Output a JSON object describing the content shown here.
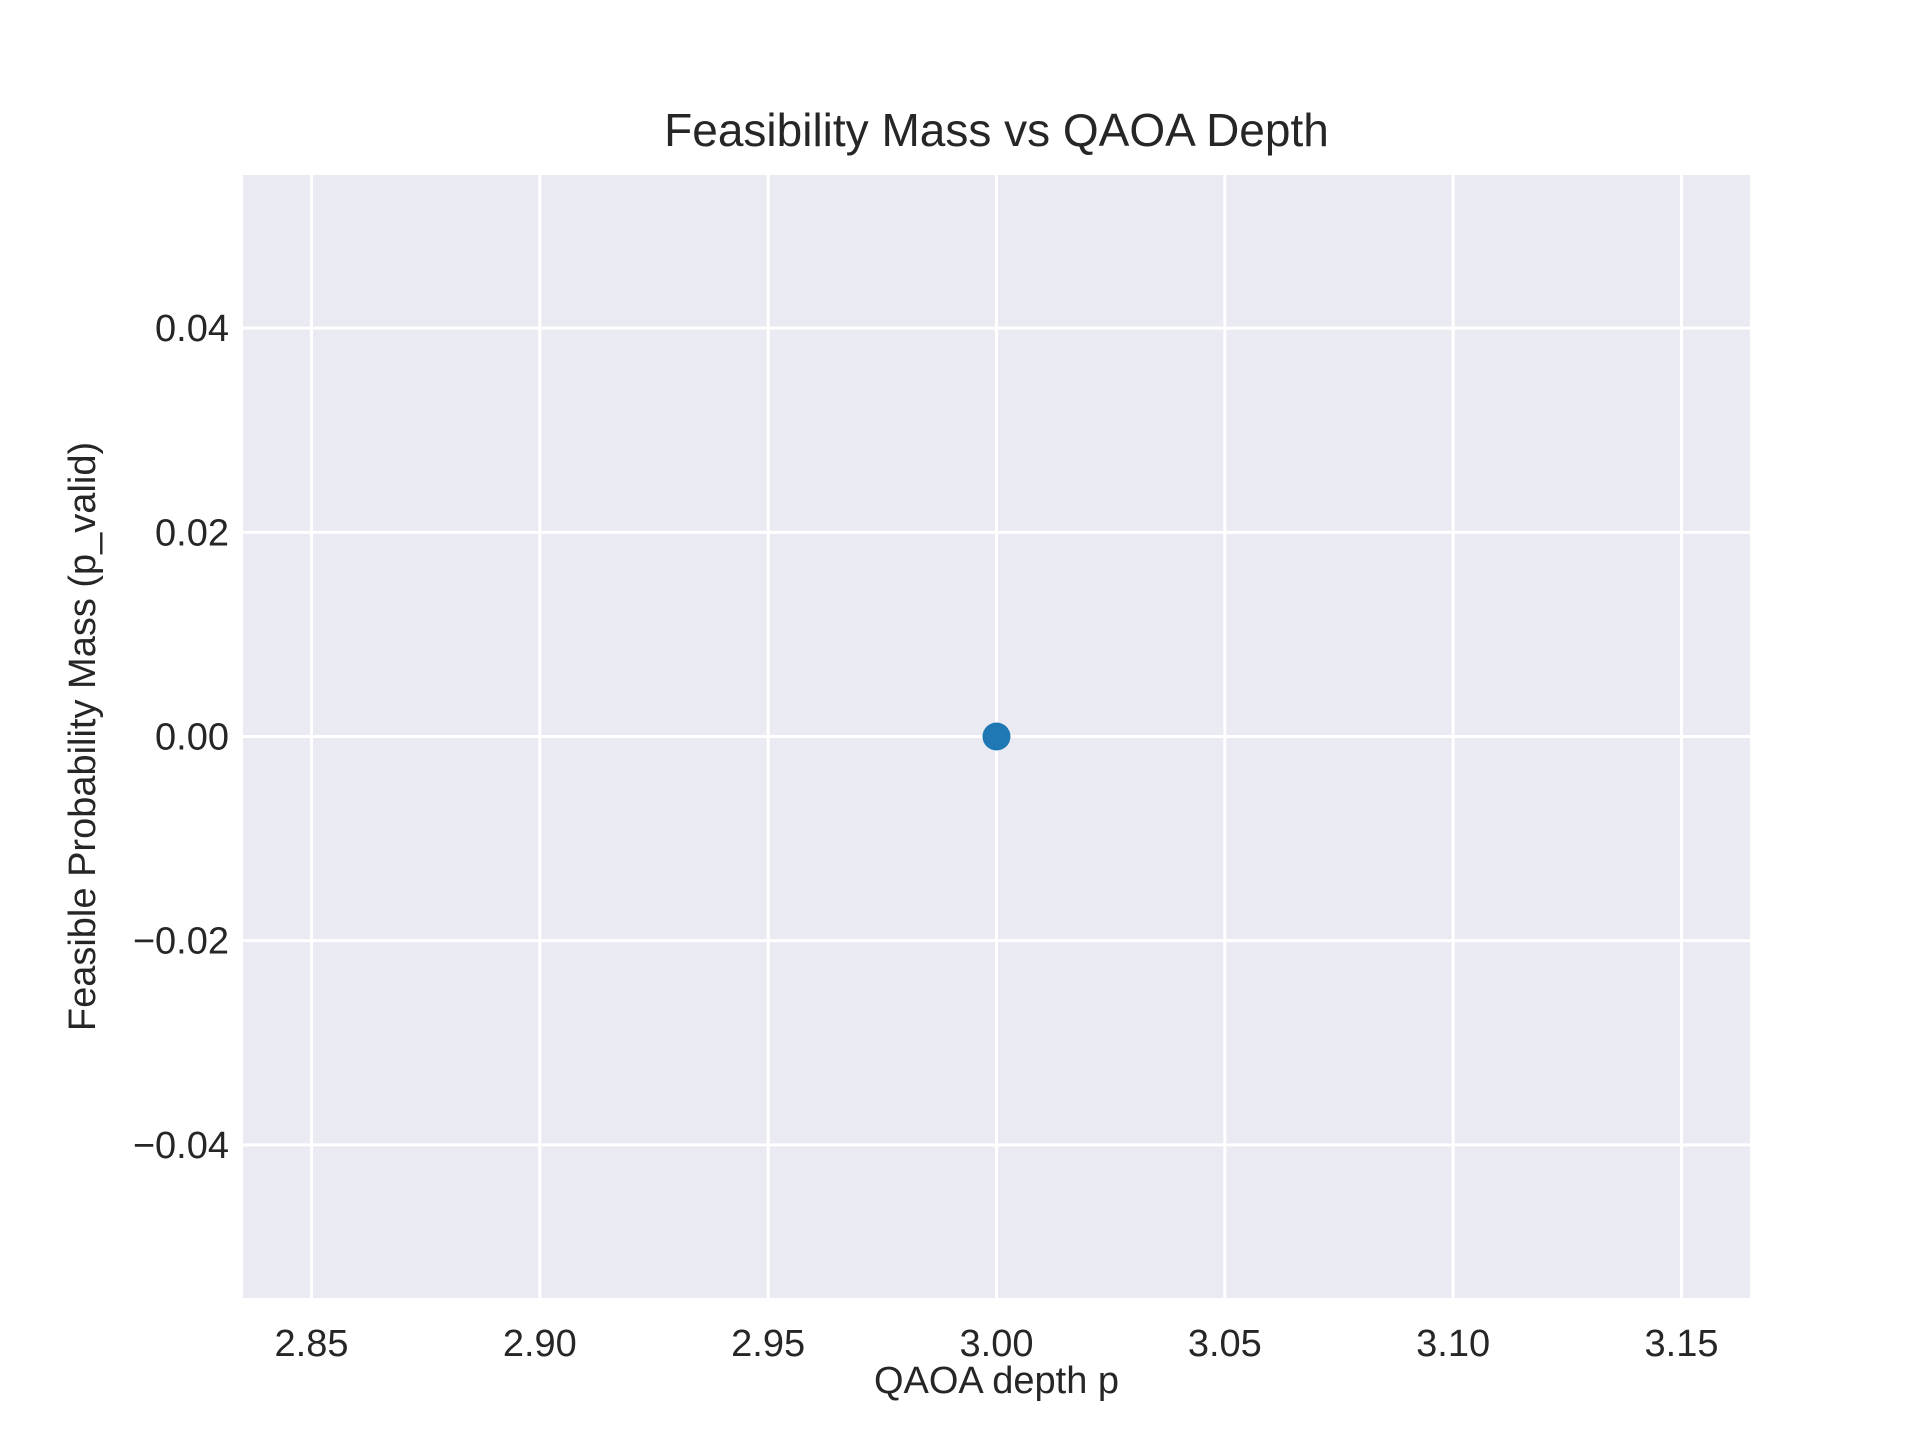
{
  "chart_data": {
    "type": "scatter",
    "title": "Feasibility Mass vs QAOA Depth",
    "xlabel": "QAOA depth p",
    "ylabel": "Feasible Probability Mass (p_valid)",
    "xlim": [
      2.835,
      3.165
    ],
    "ylim": [
      -0.055,
      0.055
    ],
    "x_ticks": [
      2.85,
      2.9,
      2.95,
      3.0,
      3.05,
      3.1,
      3.15
    ],
    "x_tick_labels": [
      "2.85",
      "2.90",
      "2.95",
      "3.00",
      "3.05",
      "3.10",
      "3.15"
    ],
    "y_ticks": [
      0.04,
      0.02,
      0.0,
      -0.02,
      -0.04
    ],
    "y_tick_labels": [
      "0.04",
      "0.02",
      "0.00",
      "−0.02",
      "−0.04"
    ],
    "grid": true,
    "series": [
      {
        "x": [
          3.0
        ],
        "y": [
          0.0
        ],
        "color": "#1f77b4"
      }
    ]
  },
  "style": {
    "plot_background": "#eaeaf2",
    "grid_color": "#ffffff",
    "text_color": "#262626"
  }
}
